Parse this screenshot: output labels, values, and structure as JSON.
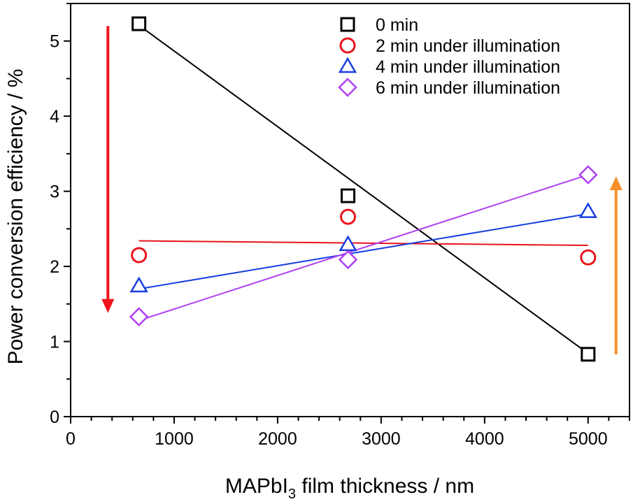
{
  "chart_data": {
    "type": "scatter",
    "xlabel_main": "MAPbI",
    "xlabel_sub": "3",
    "xlabel_rest": " film thickness / nm",
    "ylabel": "Power conversion efficiency / %",
    "xlim": [
      0,
      5400
    ],
    "ylim": [
      0,
      5.5
    ],
    "xticks": [
      0,
      1000,
      2000,
      3000,
      4000,
      5000
    ],
    "yticks": [
      0,
      1,
      2,
      3,
      4,
      5
    ],
    "x_minor_step": 200,
    "y_minor_step": 0.5,
    "grid": false,
    "legend_position": "top-right",
    "x": [
      660,
      2680,
      5000
    ],
    "series": [
      {
        "name": "0 min",
        "marker": "square",
        "color": "#000000",
        "values": [
          5.23,
          2.94,
          0.83
        ],
        "fit": [
          5.21,
          0.84
        ]
      },
      {
        "name": "2 min under illumination",
        "marker": "circle",
        "color": "#e8141c",
        "values": [
          2.15,
          2.66,
          2.12
        ],
        "fit": [
          2.34,
          2.28
        ]
      },
      {
        "name": "4 min under illumination",
        "marker": "triangle",
        "color": "#1a3fe0",
        "values": [
          1.74,
          2.29,
          2.73
        ],
        "fit": [
          1.7,
          2.7
        ]
      },
      {
        "name": "6 min under illumination",
        "marker": "diamond",
        "color": "#b040f0",
        "values": [
          1.33,
          2.09,
          3.22
        ],
        "fit": [
          1.28,
          3.22
        ]
      }
    ],
    "annotations": [
      {
        "type": "arrow",
        "direction": "down",
        "color": "#f0141c",
        "x": 360,
        "y_from": 5.2,
        "y_to": 1.38
      },
      {
        "type": "arrow",
        "direction": "up",
        "color": "#f5902a",
        "x": 5270,
        "y_from": 0.83,
        "y_to": 3.2
      }
    ]
  }
}
